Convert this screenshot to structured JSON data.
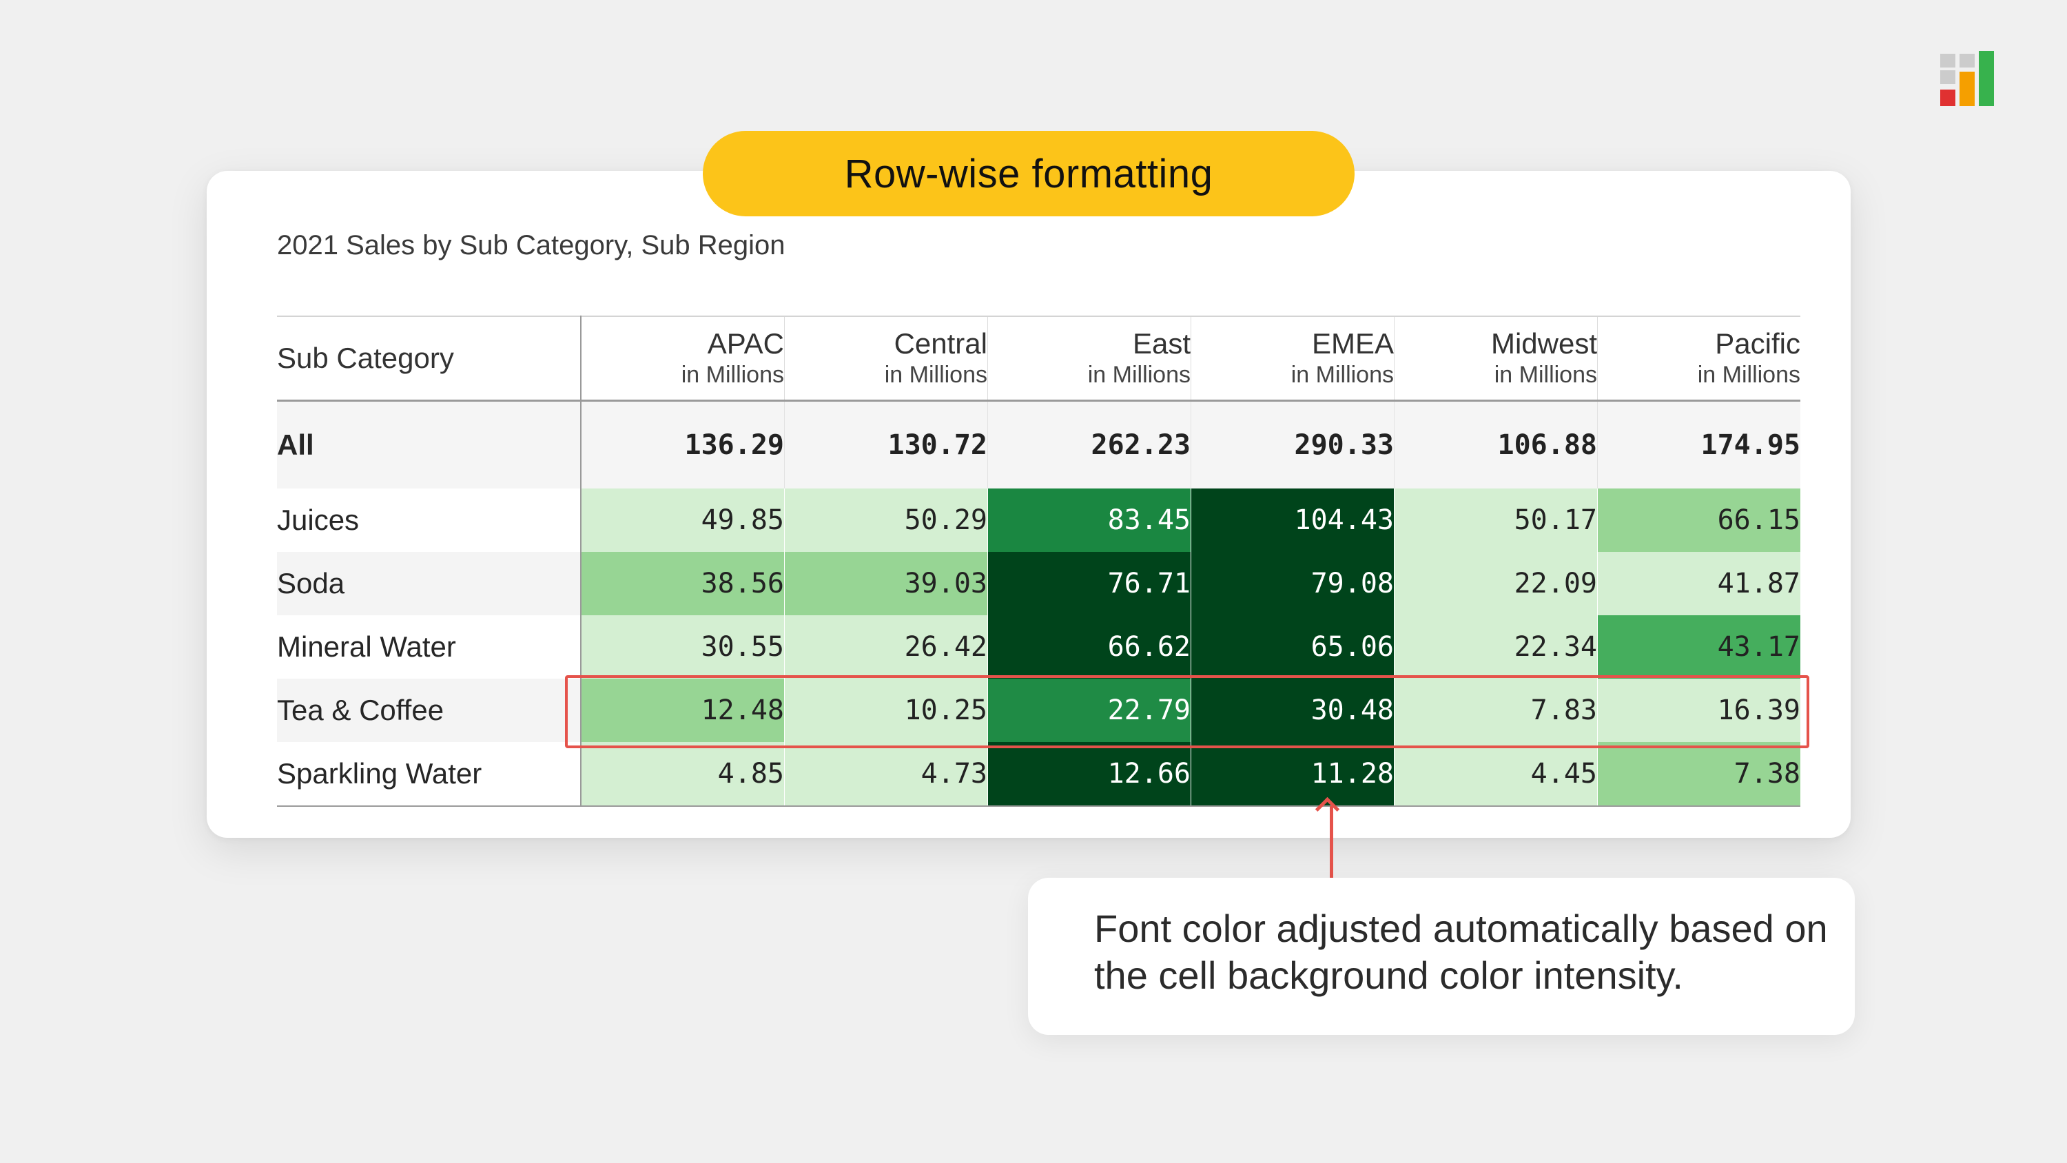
{
  "pill_label": "Row-wise formatting",
  "table_title": "2021 Sales by Sub Category, Sub Region",
  "header": {
    "row_label": "Sub Category",
    "unit": "in Millions",
    "regions": [
      "APAC",
      "Central",
      "East",
      "EMEA",
      "Midwest",
      "Pacific"
    ]
  },
  "total_row": {
    "label": "All",
    "values": [
      "136.29",
      "130.72",
      "262.23",
      "290.33",
      "106.88",
      "174.95"
    ]
  },
  "rows": [
    {
      "label": "Juices",
      "values": [
        "49.85",
        "50.29",
        "83.45",
        "104.43",
        "50.17",
        "66.15"
      ],
      "fills": [
        "#d4efd2",
        "#d4efd2",
        "#1a8741",
        "#00441b",
        "#d4efd2",
        "#97d594"
      ],
      "text": [
        "#222222",
        "#222222",
        "#ffffff",
        "#ffffff",
        "#222222",
        "#222222"
      ]
    },
    {
      "label": "Soda",
      "values": [
        "38.56",
        "39.03",
        "76.71",
        "79.08",
        "22.09",
        "41.87"
      ],
      "fills": [
        "#97d594",
        "#97d594",
        "#00441b",
        "#00441b",
        "#d4efd2",
        "#d4efd2"
      ],
      "text": [
        "#222222",
        "#222222",
        "#ffffff",
        "#ffffff",
        "#222222",
        "#222222"
      ]
    },
    {
      "label": "Mineral Water",
      "values": [
        "30.55",
        "26.42",
        "66.62",
        "65.06",
        "22.34",
        "43.17"
      ],
      "fills": [
        "#d4efd2",
        "#d4efd2",
        "#00441b",
        "#00441b",
        "#d4efd2",
        "#45ae5d"
      ],
      "text": [
        "#222222",
        "#222222",
        "#ffffff",
        "#ffffff",
        "#222222",
        "#222222"
      ]
    },
    {
      "label": "Tea & Coffee",
      "values": [
        "12.48",
        "10.25",
        "22.79",
        "30.48",
        "7.83",
        "16.39"
      ],
      "fills": [
        "#97d594",
        "#d4efd2",
        "#1f8b45",
        "#00441b",
        "#d4efd2",
        "#d4efd2"
      ],
      "text": [
        "#222222",
        "#222222",
        "#ffffff",
        "#ffffff",
        "#222222",
        "#222222"
      ]
    },
    {
      "label": "Sparkling Water",
      "values": [
        "4.85",
        "4.73",
        "12.66",
        "11.28",
        "4.45",
        "7.38"
      ],
      "fills": [
        "#d4efd2",
        "#d4efd2",
        "#00441b",
        "#00441b",
        "#d4efd2",
        "#97d594"
      ],
      "text": [
        "#222222",
        "#222222",
        "#ffffff",
        "#ffffff",
        "#222222",
        "#222222"
      ]
    }
  ],
  "row_backgrounds": [
    "#ffffff",
    "#f4f4f4"
  ],
  "callout_text": "Font color adjusted automatically based on the cell background color intensity.",
  "colors": {
    "accent_yellow": "#fcc419",
    "highlight_red": "#e5534b",
    "logo": [
      "#cccccc",
      "#cccccc",
      "#cccccc",
      "#e03131",
      "#f59f00",
      "#37b24d"
    ]
  }
}
